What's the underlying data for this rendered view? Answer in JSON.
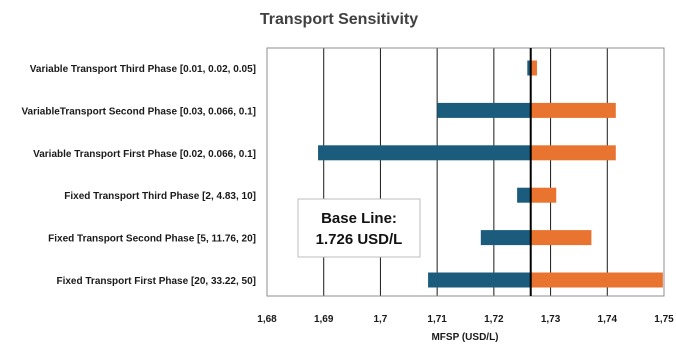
{
  "chart_data": {
    "type": "bar",
    "orientation": "horizontal",
    "title": "Transport Sensitivity",
    "xlabel": "MFSP (USD/L)",
    "ylabel": "",
    "xlim": [
      1.68,
      1.75
    ],
    "x_ticks": [
      "1,68",
      "1,69",
      "1,7",
      "1,71",
      "1,72",
      "1,73",
      "1,74",
      "1,75"
    ],
    "x_tick_values": [
      1.68,
      1.69,
      1.7,
      1.71,
      1.72,
      1.73,
      1.74,
      1.75
    ],
    "baseline": 1.7265,
    "categories": [
      "Variable Transport Third Phase [0.01, 0.02, 0.05]",
      "VariableTransport Second Phase [0.03, 0.066, 0.1]",
      "Variable Transport First Phase [0.02, 0.066, 0.1]",
      "Fixed Transport Third Phase [2, 4.83, 10]",
      "Fixed Transport Second Phase [5, 11.76, 20]",
      "Fixed Transport First Phase [20, 33.22, 50]"
    ],
    "series": [
      {
        "color": "#1b5c7d",
        "values": [
          1.7259,
          1.71,
          1.689,
          1.7241,
          1.7177,
          1.7084
        ]
      },
      {
        "color": "#e8742f",
        "values": [
          1.7276,
          1.7415,
          1.7415,
          1.731,
          1.7372,
          1.7498
        ]
      }
    ],
    "grid": true,
    "legend": "none"
  },
  "annotation": {
    "line1": "Base Line:",
    "line2": "1.726 USD/L"
  }
}
